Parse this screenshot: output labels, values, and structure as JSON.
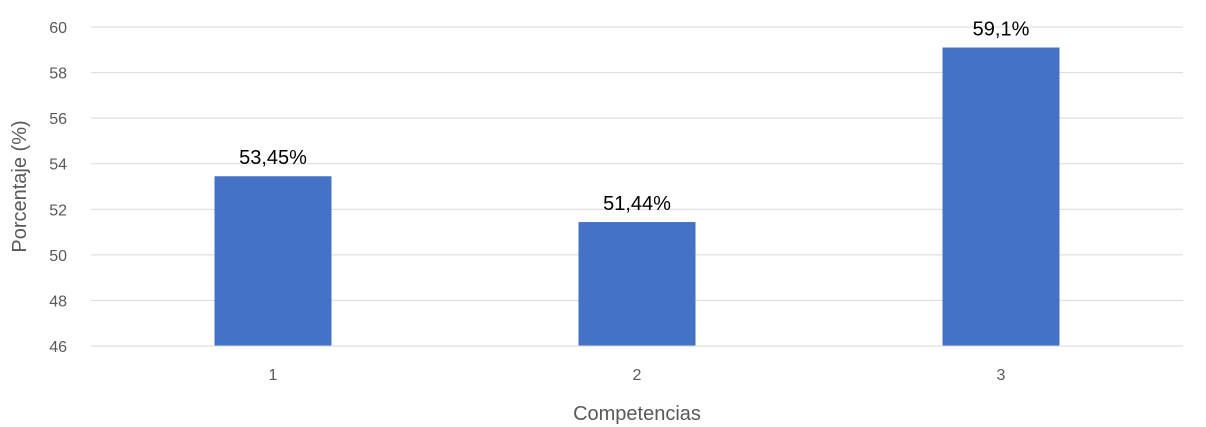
{
  "chart_data": {
    "type": "bar",
    "categories": [
      "1",
      "2",
      "3"
    ],
    "values": [
      53.45,
      51.44,
      59.1
    ],
    "data_labels": [
      "53,45%",
      "51,44%",
      "59,1%"
    ],
    "title": "",
    "xlabel": "Competencias",
    "ylabel": "Porcentaje (%)",
    "ylim": [
      46,
      60
    ],
    "yticks": [
      46,
      48,
      50,
      52,
      54,
      56,
      58,
      60
    ],
    "grid": true,
    "legend": "none",
    "bar_color": "#4472C4"
  }
}
